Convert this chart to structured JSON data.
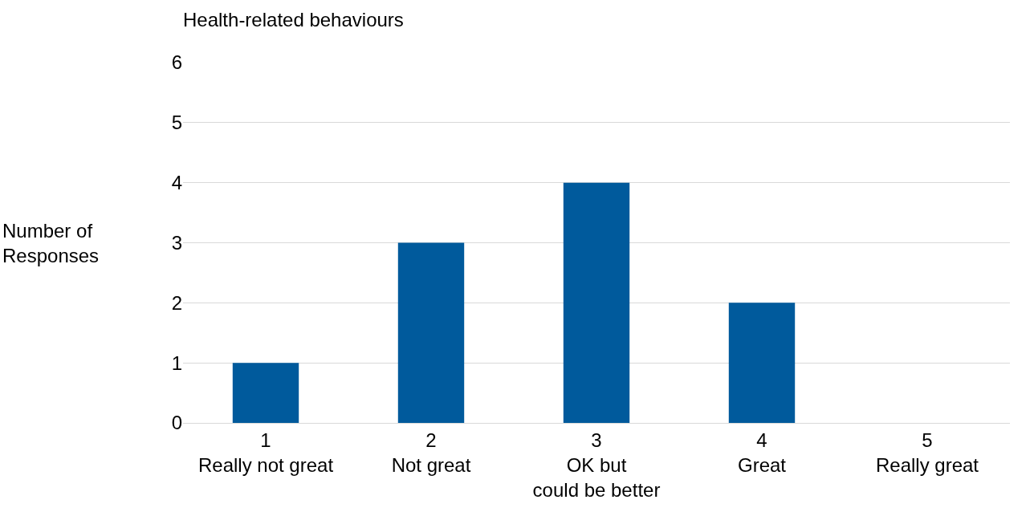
{
  "chart_data": {
    "type": "bar",
    "title": "Health-related behaviours",
    "ylabel": "Number of\nResponses",
    "categories": [
      "1\nReally not great",
      "2\nNot great",
      "3\nOK but\ncould be better",
      "4\nGreat",
      "5\nReally great"
    ],
    "values": [
      1,
      3,
      4,
      2,
      0
    ],
    "color": "#005a9c",
    "ylim": [
      0,
      6
    ],
    "yticks": [
      0,
      1,
      2,
      3,
      4,
      5,
      6
    ],
    "grid": "y",
    "legend": false
  }
}
